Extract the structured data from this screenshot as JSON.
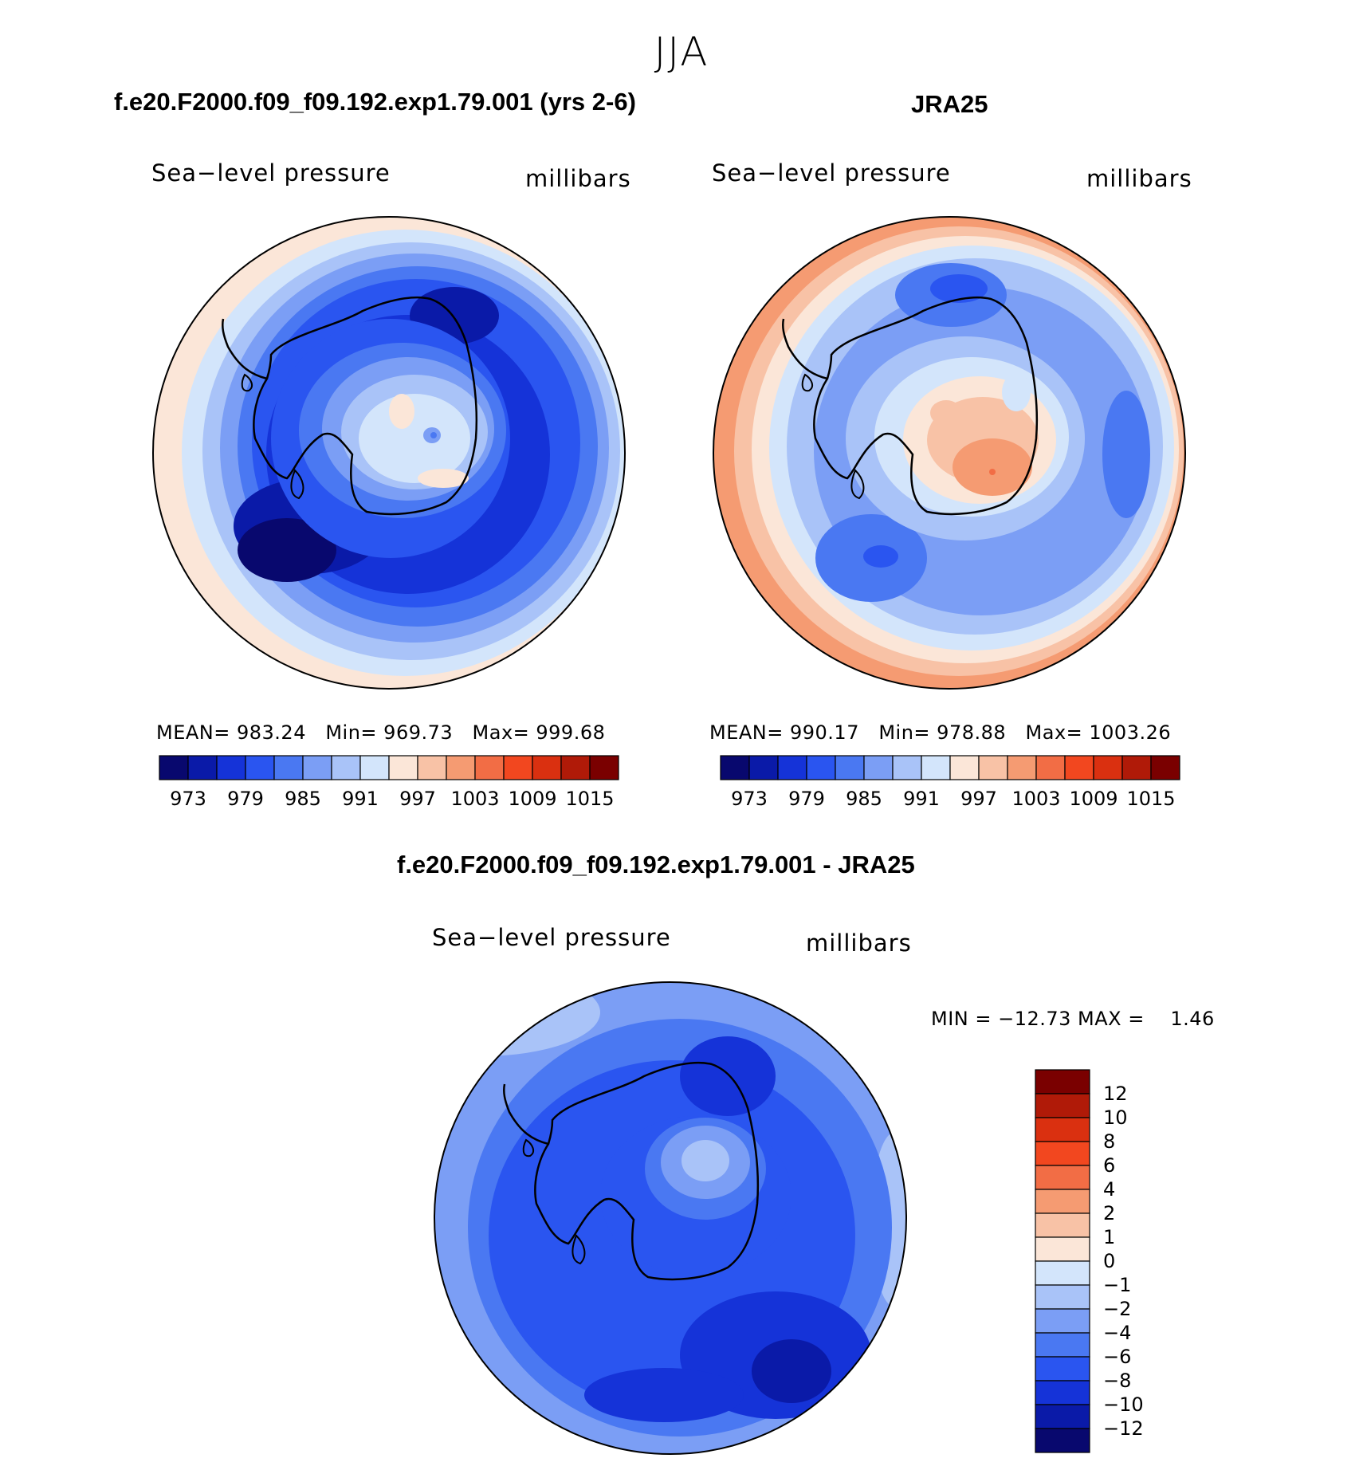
{
  "figure": {
    "season": "JJA",
    "variable": "Sea−level pressure",
    "units": "millibars"
  },
  "panels": [
    {
      "title": "f.e20.F2000.f09_f09.192.exp1.79.001 (yrs 2-6)",
      "stats": "MEAN= 983.24   Min= 969.73   Max= 999.68"
    },
    {
      "title": "JRA25",
      "stats": "MEAN= 990.17   Min= 978.88   Max= 1003.26"
    },
    {
      "title": "f.e20.F2000.f09_f09.192.exp1.79.001 - JRA25",
      "stats": "MIN = −12.73 MAX =    1.46"
    }
  ],
  "abs_colorbar": {
    "colors": [
      "#08086e",
      "#0a1aa8",
      "#1533d8",
      "#2a55f0",
      "#4a78f2",
      "#7b9ef5",
      "#a9c3f8",
      "#d3e5fb",
      "#fbe6d8",
      "#f8c2a6",
      "#f59b72",
      "#f26d45",
      "#f2471f",
      "#da3010",
      "#b01a08",
      "#7a0000"
    ],
    "tick_labels": [
      "973",
      "979",
      "985",
      "991",
      "997",
      "1003",
      "1009",
      "1015"
    ]
  },
  "diff_colorbar": {
    "colors_top_to_bottom": [
      "#7a0000",
      "#b01a08",
      "#da3010",
      "#f2471f",
      "#f26d45",
      "#f59b72",
      "#f8c2a6",
      "#fbe6d8",
      "#d3e5fb",
      "#a9c3f8",
      "#7b9ef5",
      "#4a78f2",
      "#2a55f0",
      "#1533d8",
      "#0a1aa8",
      "#08086e"
    ],
    "tick_labels": [
      "12",
      "10",
      "8",
      "6",
      "4",
      "2",
      "1",
      "0",
      "−1",
      "−2",
      "−4",
      "−6",
      "−8",
      "−10",
      "−12"
    ]
  }
}
